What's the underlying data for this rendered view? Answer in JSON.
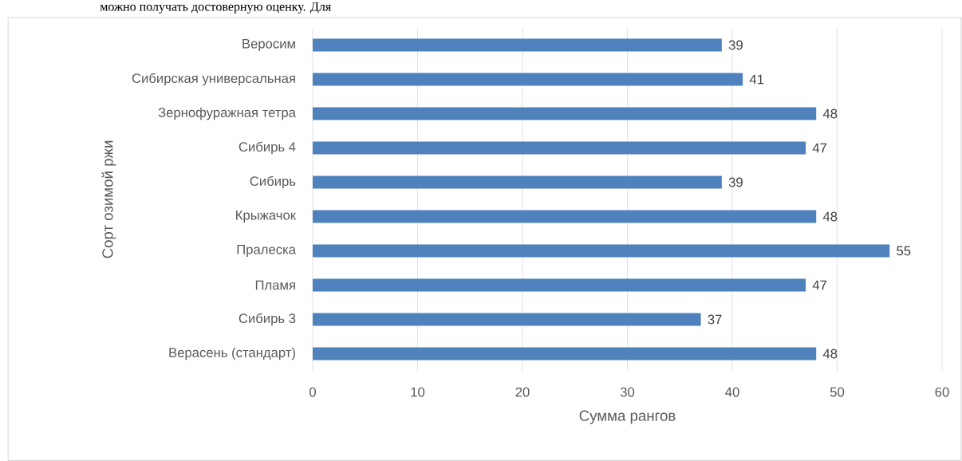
{
  "chart_data": {
    "type": "bar",
    "orientation": "horizontal",
    "categories": [
      "Веросим",
      "Сибирская универсальная",
      "Зернофуражная тетра",
      "Сибирь 4",
      "Сибирь",
      "Крыжачок",
      "Пралеска",
      "Пламя",
      "Сибирь 3",
      "Верасень (стандарт)"
    ],
    "values": [
      39,
      41,
      48,
      47,
      39,
      48,
      55,
      47,
      37,
      48
    ],
    "color": "#4f81bd",
    "xlim": [
      0,
      60
    ],
    "xticks": [
      0,
      10,
      20,
      30,
      40,
      50,
      60
    ],
    "xlabel": "Сумма рангов",
    "ylabel": "Сорт озимой ржи",
    "grid": "x",
    "data_labels": true,
    "annotations": [
      "можно получать достоверную оценку. Для"
    ]
  }
}
